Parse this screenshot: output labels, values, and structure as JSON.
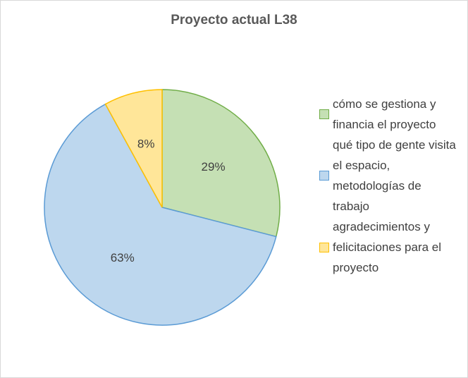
{
  "chart_data": {
    "type": "pie",
    "title": "Proyecto actual L38",
    "categories": [
      "cómo se gestiona y financia el proyecto",
      "qué tipo de gente visita el espacio, metodologías de trabajo",
      "agradecimientos y felicitaciones para el proyecto"
    ],
    "values": [
      29,
      63,
      8
    ],
    "value_labels": [
      "29%",
      "63%",
      "8%"
    ],
    "colors": [
      "#c5e0b4",
      "#bdd7ee",
      "#ffe699"
    ],
    "edge_colors": [
      "#70ad47",
      "#5b9bd5",
      "#ffc000"
    ],
    "legend": "right"
  }
}
